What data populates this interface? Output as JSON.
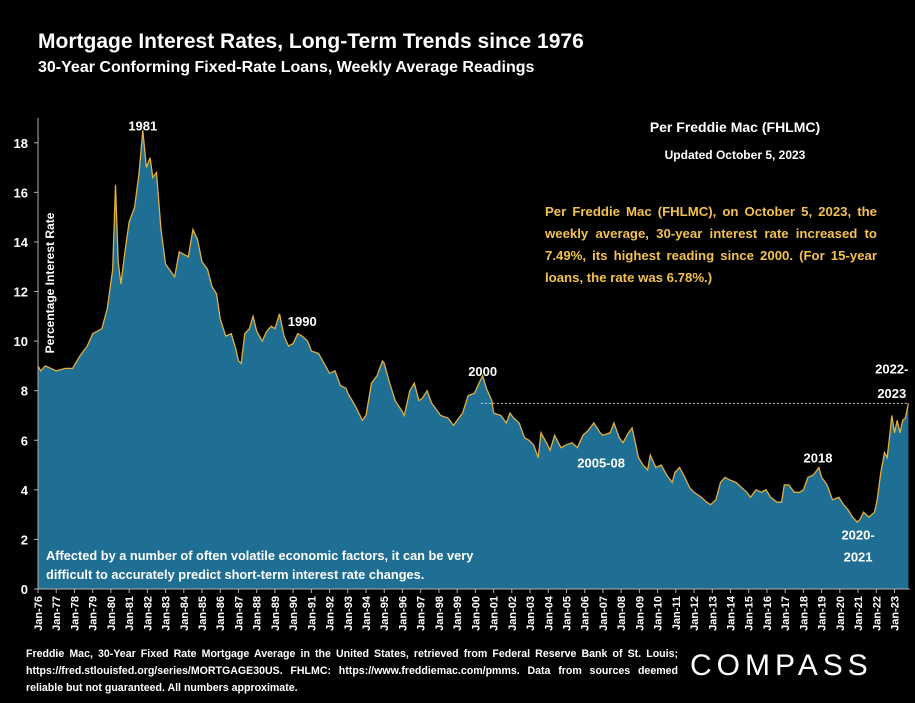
{
  "header": {
    "title": "Mortgage Interest Rates, Long-Term Trends since 1976",
    "subtitle": "30-Year Conforming Fixed-Rate Loans, Weekly Average Readings"
  },
  "source_box": {
    "title": "Per Freddie Mac (FHLMC)",
    "updated": "Updated October 5, 2023"
  },
  "callout": "Per Freddie Mac (FHLMC), on October 5, 2023, the weekly average, 30-year interest rate increased to 7.49%, its highest reading since 2000. (For 15-year loans, the rate was 6.78%.)",
  "note": "Affected by a number of often volatile economic factors, it can be very difficult to accurately predict short-term interest rate changes.",
  "footer": "Freddie Mac, 30-Year Fixed Rate Mortgage Average in the United States, retrieved from Federal Reserve Bank of St. Louis; https://fred.stlouisfed.org/series/MORTGAGE30US. FHLMC: https://www.freddiemac.com/pmms. Data from sources deemed reliable but not guaranteed. All numbers approximate.",
  "logo": "COMPASS",
  "colors": {
    "background": "#000000",
    "area_fill": "#1f6e94",
    "line": "#e0b040",
    "callout_text": "#f2c14e",
    "axis": "#b0b0b0"
  },
  "chart_data": {
    "type": "area",
    "ylabel": "Percentage Interest Rate",
    "ylim": [
      0,
      19
    ],
    "yticks": [
      0,
      2,
      4,
      6,
      8,
      10,
      12,
      14,
      16,
      18
    ],
    "xlim": [
      1976.0,
      2023.85
    ],
    "xticklabels": [
      "Jan-76",
      "Jan-77",
      "Jan-78",
      "Jan-79",
      "Jan-80",
      "Jan-81",
      "Jan-82",
      "Jan-83",
      "Jan-84",
      "Jan-85",
      "Jan-86",
      "Jan-87",
      "Jan-88",
      "Jan-89",
      "Jan-90",
      "Jan-91",
      "Jan-92",
      "Jan-93",
      "Jan-94",
      "Jan-95",
      "Jan-96",
      "Jan-97",
      "Jan-98",
      "Jan-99",
      "Jan-00",
      "Jan-01",
      "Jan-02",
      "Jan-03",
      "Jan-04",
      "Jan-05",
      "Jan-06",
      "Jan-07",
      "Jan-08",
      "Jan-09",
      "Jan-10",
      "Jan-11",
      "Jan-12",
      "Jan-13",
      "Jan-14",
      "Jan-15",
      "Jan-16",
      "Jan-17",
      "Jan-18",
      "Jan-19",
      "Jan-20",
      "Jan-21",
      "Jan-22",
      "Jan-23"
    ],
    "grid": false,
    "reference_line": {
      "value": 7.49,
      "from": 2000.3,
      "to": 2023.76
    },
    "annotations": [
      {
        "text": "1981",
        "x": 1981.75,
        "y": 18.5
      },
      {
        "text": "1990",
        "x": 1990.5,
        "y": 10.6
      },
      {
        "text": "2000",
        "x": 2000.4,
        "y": 8.6
      },
      {
        "text": "2005-08",
        "x": 2006.9,
        "y": 4.9
      },
      {
        "text": "2018",
        "x": 2018.8,
        "y": 5.1
      },
      {
        "text": "2020-",
        "x": 2021.0,
        "y": 2.0
      },
      {
        "text": "2021",
        "x": 2021.0,
        "y": 1.1
      },
      {
        "text": "2022-",
        "x": 2022.85,
        "y": 8.7
      },
      {
        "text": "2023",
        "x": 2022.85,
        "y": 7.7
      }
    ],
    "series": [
      {
        "values": [
          [
            1976.0,
            9.0
          ],
          [
            1976.15,
            8.8
          ],
          [
            1976.4,
            9.0
          ],
          [
            1976.7,
            8.9
          ],
          [
            1977.0,
            8.8
          ],
          [
            1977.5,
            8.9
          ],
          [
            1977.9,
            8.9
          ],
          [
            1978.3,
            9.4
          ],
          [
            1978.7,
            9.8
          ],
          [
            1979.0,
            10.3
          ],
          [
            1979.5,
            10.5
          ],
          [
            1979.8,
            11.3
          ],
          [
            1980.1,
            12.9
          ],
          [
            1980.25,
            16.3
          ],
          [
            1980.4,
            13.2
          ],
          [
            1980.55,
            12.3
          ],
          [
            1980.75,
            13.5
          ],
          [
            1981.0,
            14.8
          ],
          [
            1981.3,
            15.4
          ],
          [
            1981.55,
            16.8
          ],
          [
            1981.75,
            18.5
          ],
          [
            1981.95,
            17.0
          ],
          [
            1982.15,
            17.4
          ],
          [
            1982.3,
            16.6
          ],
          [
            1982.5,
            16.8
          ],
          [
            1982.75,
            14.5
          ],
          [
            1983.0,
            13.1
          ],
          [
            1983.3,
            12.8
          ],
          [
            1983.5,
            12.6
          ],
          [
            1983.75,
            13.6
          ],
          [
            1984.0,
            13.5
          ],
          [
            1984.25,
            13.4
          ],
          [
            1984.5,
            14.5
          ],
          [
            1984.75,
            14.1
          ],
          [
            1985.0,
            13.2
          ],
          [
            1985.3,
            12.9
          ],
          [
            1985.55,
            12.2
          ],
          [
            1985.8,
            11.9
          ],
          [
            1986.0,
            10.9
          ],
          [
            1986.3,
            10.2
          ],
          [
            1986.6,
            10.3
          ],
          [
            1986.85,
            9.7
          ],
          [
            1987.0,
            9.2
          ],
          [
            1987.15,
            9.1
          ],
          [
            1987.35,
            10.3
          ],
          [
            1987.6,
            10.5
          ],
          [
            1987.8,
            11.0
          ],
          [
            1988.0,
            10.4
          ],
          [
            1988.3,
            10.0
          ],
          [
            1988.55,
            10.4
          ],
          [
            1988.8,
            10.6
          ],
          [
            1989.0,
            10.5
          ],
          [
            1989.25,
            11.1
          ],
          [
            1989.5,
            10.2
          ],
          [
            1989.75,
            9.8
          ],
          [
            1990.0,
            9.9
          ],
          [
            1990.25,
            10.3
          ],
          [
            1990.5,
            10.2
          ],
          [
            1990.8,
            10.0
          ],
          [
            1991.0,
            9.6
          ],
          [
            1991.4,
            9.5
          ],
          [
            1991.7,
            9.1
          ],
          [
            1992.0,
            8.7
          ],
          [
            1992.3,
            8.8
          ],
          [
            1992.6,
            8.2
          ],
          [
            1992.9,
            8.1
          ],
          [
            1993.0,
            7.9
          ],
          [
            1993.4,
            7.4
          ],
          [
            1993.8,
            6.8
          ],
          [
            1994.0,
            7.0
          ],
          [
            1994.3,
            8.3
          ],
          [
            1994.6,
            8.6
          ],
          [
            1994.9,
            9.2
          ],
          [
            1995.0,
            9.1
          ],
          [
            1995.3,
            8.3
          ],
          [
            1995.6,
            7.6
          ],
          [
            1995.95,
            7.2
          ],
          [
            1996.1,
            7.0
          ],
          [
            1996.4,
            8.0
          ],
          [
            1996.65,
            8.3
          ],
          [
            1996.9,
            7.6
          ],
          [
            1997.1,
            7.7
          ],
          [
            1997.35,
            8.0
          ],
          [
            1997.6,
            7.5
          ],
          [
            1997.9,
            7.2
          ],
          [
            1998.1,
            7.0
          ],
          [
            1998.5,
            6.9
          ],
          [
            1998.8,
            6.6
          ],
          [
            1999.0,
            6.8
          ],
          [
            1999.3,
            7.1
          ],
          [
            1999.6,
            7.8
          ],
          [
            1999.95,
            7.9
          ],
          [
            2000.2,
            8.3
          ],
          [
            2000.4,
            8.6
          ],
          [
            2000.6,
            8.1
          ],
          [
            2000.9,
            7.6
          ],
          [
            2001.0,
            7.1
          ],
          [
            2001.4,
            7.0
          ],
          [
            2001.7,
            6.7
          ],
          [
            2001.9,
            7.1
          ],
          [
            2002.1,
            6.9
          ],
          [
            2002.4,
            6.7
          ],
          [
            2002.7,
            6.1
          ],
          [
            2002.95,
            6.0
          ],
          [
            2003.2,
            5.8
          ],
          [
            2003.45,
            5.3
          ],
          [
            2003.6,
            6.3
          ],
          [
            2003.9,
            5.9
          ],
          [
            2004.1,
            5.6
          ],
          [
            2004.35,
            6.2
          ],
          [
            2004.7,
            5.7
          ],
          [
            2004.95,
            5.8
          ],
          [
            2005.3,
            5.9
          ],
          [
            2005.6,
            5.7
          ],
          [
            2005.9,
            6.2
          ],
          [
            2006.2,
            6.4
          ],
          [
            2006.5,
            6.7
          ],
          [
            2006.85,
            6.3
          ],
          [
            2007.0,
            6.2
          ],
          [
            2007.4,
            6.3
          ],
          [
            2007.6,
            6.7
          ],
          [
            2007.9,
            6.1
          ],
          [
            2008.1,
            5.9
          ],
          [
            2008.4,
            6.3
          ],
          [
            2008.6,
            6.5
          ],
          [
            2008.95,
            5.3
          ],
          [
            2009.2,
            5.0
          ],
          [
            2009.45,
            4.8
          ],
          [
            2009.6,
            5.4
          ],
          [
            2009.9,
            4.9
          ],
          [
            2010.2,
            5.0
          ],
          [
            2010.5,
            4.6
          ],
          [
            2010.8,
            4.3
          ],
          [
            2010.95,
            4.7
          ],
          [
            2011.2,
            4.9
          ],
          [
            2011.5,
            4.5
          ],
          [
            2011.75,
            4.1
          ],
          [
            2012.0,
            3.9
          ],
          [
            2012.4,
            3.7
          ],
          [
            2012.7,
            3.5
          ],
          [
            2012.9,
            3.4
          ],
          [
            2013.2,
            3.6
          ],
          [
            2013.45,
            4.3
          ],
          [
            2013.7,
            4.5
          ],
          [
            2013.95,
            4.4
          ],
          [
            2014.3,
            4.3
          ],
          [
            2014.6,
            4.1
          ],
          [
            2014.9,
            3.9
          ],
          [
            2015.1,
            3.7
          ],
          [
            2015.4,
            4.0
          ],
          [
            2015.7,
            3.9
          ],
          [
            2015.95,
            4.0
          ],
          [
            2016.2,
            3.7
          ],
          [
            2016.55,
            3.5
          ],
          [
            2016.8,
            3.5
          ],
          [
            2016.95,
            4.2
          ],
          [
            2017.2,
            4.2
          ],
          [
            2017.5,
            3.9
          ],
          [
            2017.8,
            3.9
          ],
          [
            2018.0,
            4.0
          ],
          [
            2018.25,
            4.5
          ],
          [
            2018.55,
            4.6
          ],
          [
            2018.85,
            4.9
          ],
          [
            2019.0,
            4.5
          ],
          [
            2019.3,
            4.2
          ],
          [
            2019.6,
            3.6
          ],
          [
            2019.95,
            3.7
          ],
          [
            2020.2,
            3.4
          ],
          [
            2020.45,
            3.2
          ],
          [
            2020.7,
            2.9
          ],
          [
            2020.95,
            2.7
          ],
          [
            2021.1,
            2.8
          ],
          [
            2021.3,
            3.1
          ],
          [
            2021.6,
            2.9
          ],
          [
            2021.9,
            3.1
          ],
          [
            2022.05,
            3.6
          ],
          [
            2022.25,
            4.7
          ],
          [
            2022.45,
            5.5
          ],
          [
            2022.6,
            5.3
          ],
          [
            2022.75,
            6.3
          ],
          [
            2022.85,
            7.0
          ],
          [
            2023.0,
            6.3
          ],
          [
            2023.15,
            6.8
          ],
          [
            2023.3,
            6.3
          ],
          [
            2023.45,
            6.8
          ],
          [
            2023.6,
            6.9
          ],
          [
            2023.76,
            7.49
          ]
        ]
      }
    ]
  }
}
